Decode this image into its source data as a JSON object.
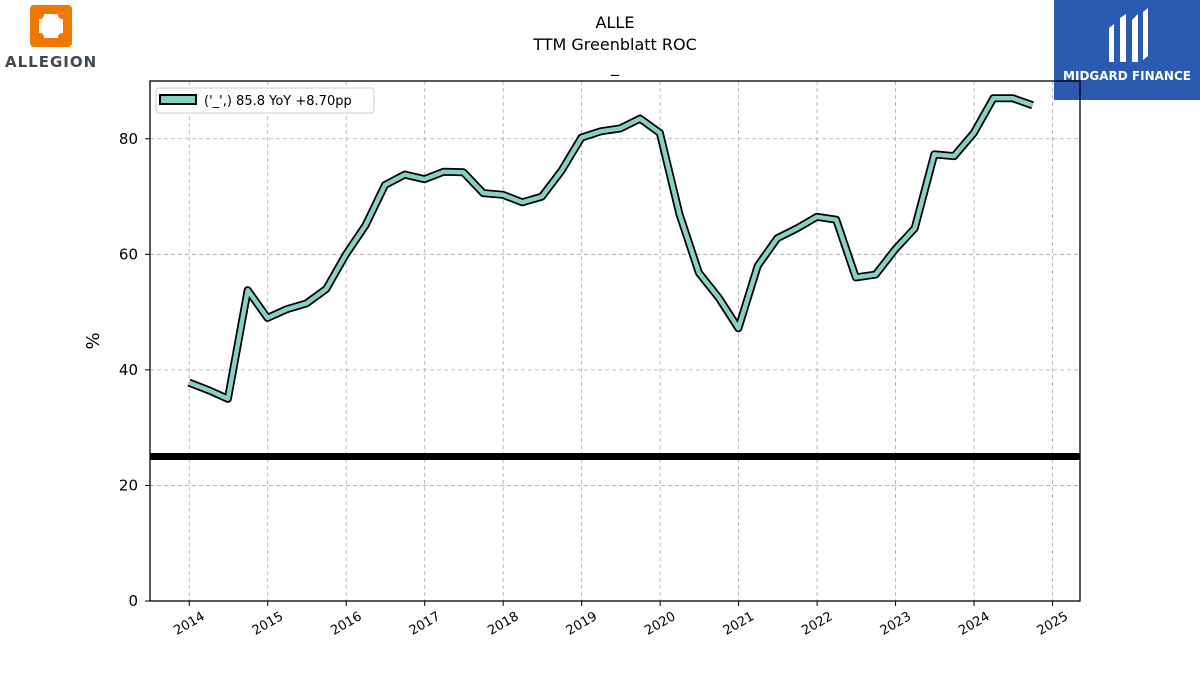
{
  "brand": {
    "name": "ALLEGION",
    "logo_color": "#f07800"
  },
  "watermark": {
    "name": "MIDGARD FINANCE",
    "bg_color": "#2a5bb0"
  },
  "title": {
    "line1": "ALLE",
    "line2": "TTM Greenblatt ROC",
    "line3": "_"
  },
  "chart_data": {
    "type": "line",
    "ylabel": "%",
    "ylim": [
      0,
      90
    ],
    "xlim": [
      2013.5,
      2025.35
    ],
    "yticks": [
      0,
      20,
      40,
      60,
      80
    ],
    "xticks": [
      2014,
      2015,
      2016,
      2017,
      2018,
      2019,
      2020,
      2021,
      2022,
      2023,
      2024,
      2025
    ],
    "grid": true,
    "legend_position": "top-left",
    "line_color": "#88d0c4",
    "reference_line": {
      "y": 25,
      "color": "#000000"
    },
    "series": [
      {
        "name": "('_',) 85.8 YoY +8.70pp",
        "x": [
          "2013-12-31",
          "2014-03-31",
          "2014-06-30",
          "2014-09-30",
          "2014-12-31",
          "2015-03-31",
          "2015-06-30",
          "2015-09-30",
          "2015-12-31",
          "2016-03-31",
          "2016-06-30",
          "2016-09-30",
          "2016-12-31",
          "2017-03-31",
          "2017-06-30",
          "2017-09-30",
          "2017-12-31",
          "2018-03-31",
          "2018-06-30",
          "2018-09-30",
          "2018-12-31",
          "2019-03-31",
          "2019-06-30",
          "2019-09-30",
          "2019-12-31",
          "2020-03-31",
          "2020-06-30",
          "2020-09-30",
          "2020-12-31",
          "2021-03-31",
          "2021-06-30",
          "2021-09-30",
          "2021-12-31",
          "2022-03-31",
          "2022-06-30",
          "2022-09-30",
          "2022-12-31",
          "2023-03-31",
          "2023-06-30",
          "2023-09-30",
          "2023-12-31",
          "2024-03-31",
          "2024-06-30",
          "2024-09-30"
        ],
        "values": [
          37.8,
          36.5,
          35.0,
          53.8,
          49.0,
          50.5,
          51.5,
          54.0,
          60.0,
          65.0,
          72.0,
          73.8,
          73.0,
          74.3,
          74.2,
          70.6,
          70.3,
          69.0,
          70.0,
          74.5,
          80.2,
          81.3,
          81.8,
          83.5,
          81.0,
          67.0,
          56.8,
          52.5,
          47.2,
          58.0,
          62.8,
          64.5,
          66.5,
          66.0,
          56.0,
          56.5,
          60.9,
          64.5,
          77.3,
          77.0,
          81.0,
          87.0,
          87.0,
          85.8
        ]
      }
    ]
  }
}
